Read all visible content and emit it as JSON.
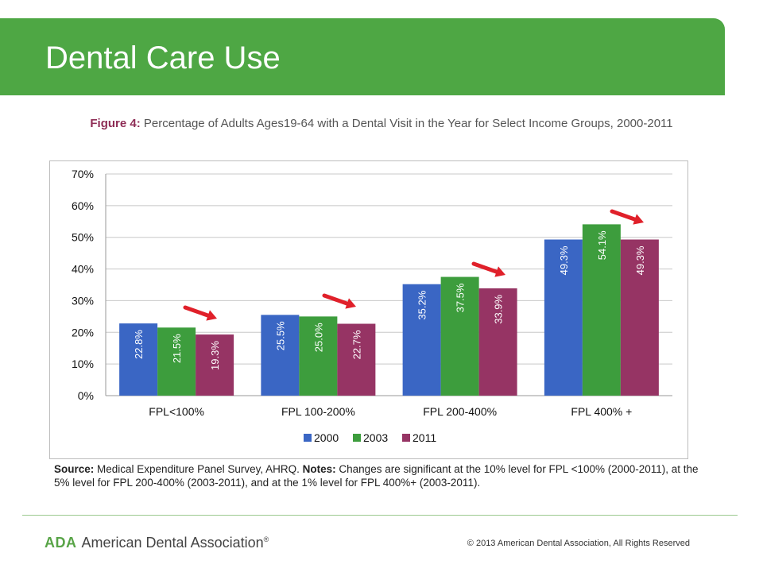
{
  "slide": {
    "title": "Dental Care Use"
  },
  "figure": {
    "label": "Figure 4:",
    "title": "Percentage of Adults Ages19-64 with a Dental Visit in the Year for Select Income Groups, 2000-2011"
  },
  "chart_data": {
    "type": "bar",
    "categories": [
      "FPL<100%",
      "FPL 100-200%",
      "FPL 200-400%",
      "FPL 400% +"
    ],
    "series": [
      {
        "name": "2000",
        "color": "#3a66c4",
        "values": [
          22.8,
          25.5,
          35.2,
          49.3
        ],
        "labels": [
          "22.8%",
          "25.5%",
          "35.2%",
          "49.3%"
        ]
      },
      {
        "name": "2003",
        "color": "#3d9d3d",
        "values": [
          21.5,
          25.0,
          37.5,
          54.1
        ],
        "labels": [
          "21.5%",
          "25.0%",
          "37.5%",
          "54.1%"
        ]
      },
      {
        "name": "2011",
        "color": "#963464",
        "values": [
          19.3,
          22.7,
          33.9,
          49.3
        ],
        "labels": [
          "19.3%",
          "22.7%",
          "33.9%",
          "49.3%"
        ]
      }
    ],
    "ylim": [
      0,
      70
    ],
    "y_ticks": [
      "0%",
      "10%",
      "20%",
      "30%",
      "40%",
      "50%",
      "60%",
      "70%"
    ],
    "grid": true,
    "legend": "bottom-center",
    "annotations": "red arrows over each income group",
    "arrow_color": "#e0202a"
  },
  "source": {
    "label": "Source:",
    "text": " Medical Expenditure Panel Survey, AHRQ. ",
    "notes_label": "Notes:",
    "notes_text": " Changes are significant at the 10% level for FPL <100% (2000-2011), at the 5% level for FPL 200-400% (2003-2011), and at the 1% level for FPL 400%+ (2003-2011)."
  },
  "footer": {
    "logo_abbr": "ADA",
    "logo_text": "American Dental Association",
    "logo_reg": "®",
    "copyright": "© 2013 American Dental Association, All Rights Reserved"
  },
  "colors": {
    "header": "#4ea744",
    "figure_label": "#8e2c55"
  }
}
